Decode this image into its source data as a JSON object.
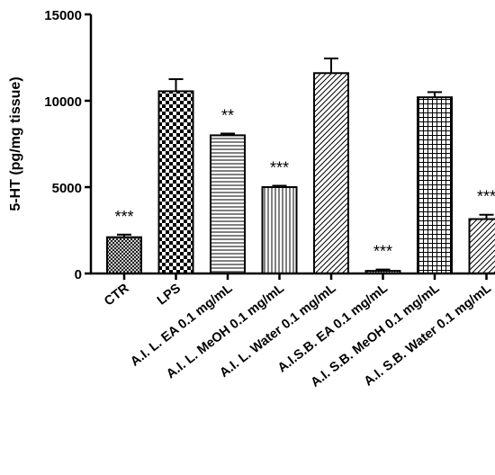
{
  "chart_data": {
    "type": "bar",
    "title": "",
    "xlabel": "",
    "ylabel": "5-HT (pg/mg tissue)",
    "ylim": [
      0,
      15000
    ],
    "yticks": [
      0,
      5000,
      10000,
      15000
    ],
    "grid": false,
    "legend": "none",
    "categories": [
      "CTR",
      "LPS",
      "A.I. L. EA 0.1 mg/mL",
      "A.I. L. MeOH 0.1 mg/mL",
      "A.I. L. Water 0.1 mg/mL",
      "A.I.S.B. EA 0.1 mg/mL",
      "A.I. S.B. MeOH 0.1 mg/mL",
      "A.I. S.B. Water 0.1 mg/mL"
    ],
    "values": [
      2100,
      10550,
      8000,
      5000,
      11600,
      150,
      10200,
      3150
    ],
    "errors": [
      150,
      700,
      100,
      80,
      850,
      80,
      300,
      250
    ],
    "significance": [
      "***",
      "",
      "**",
      "***",
      "",
      "***",
      "",
      "***"
    ],
    "patterns": [
      "crosshatch-fine",
      "checker",
      "horizontal-lines",
      "vertical-lines",
      "diagonal-lines",
      "diagonal-dense",
      "grid",
      "diagonal-lines"
    ]
  }
}
